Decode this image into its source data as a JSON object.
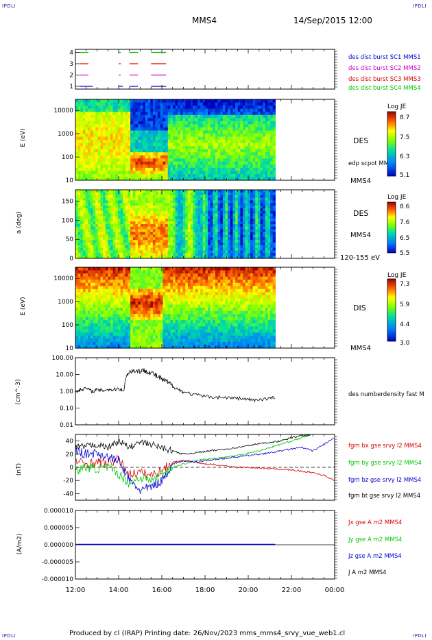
{
  "corner_labels": {
    "tl": "IPDLI",
    "tr": "IPDLI",
    "bl": "IPDLI",
    "br": "IPDLI"
  },
  "header": {
    "spacecraft": "MMS4",
    "datetime": "14/Sep/2015 12:00"
  },
  "footer": {
    "text": "Produced by cl (IRAP)   Printing date: 26/Nov/2023   mms_mms4_srvy_vue_web1.cl"
  },
  "colors": {
    "red": "#d80000",
    "green": "#00c800",
    "blue": "#0000d0",
    "magenta": "#c800c8",
    "black": "#000000"
  },
  "chart_data": [
    {
      "type": "scatter",
      "name": "burst availability",
      "ylim": [
        0.5,
        4.5
      ],
      "yticks": [
        "1",
        "2",
        "3",
        "4"
      ],
      "series": [
        {
          "name": "des dist burst SC1 MMS1",
          "level": 1,
          "color": "#0000d0",
          "segments": [
            [
              12.2,
              12.8
            ],
            [
              14.0,
              14.2
            ],
            [
              14.5,
              14.9
            ],
            [
              15.5,
              16.2
            ]
          ]
        },
        {
          "name": "des dist burst SC2 MMS2",
          "level": 2,
          "color": "#c800c8",
          "segments": [
            [
              12.2,
              12.6
            ],
            [
              14.0,
              14.1
            ],
            [
              14.5,
              14.9
            ],
            [
              15.5,
              16.2
            ]
          ]
        },
        {
          "name": "des dist burst SC3 MMS3",
          "level": 3,
          "color": "#d80000",
          "segments": [
            [
              12.2,
              12.6
            ],
            [
              14.0,
              14.1
            ],
            [
              14.5,
              14.9
            ],
            [
              15.5,
              16.2
            ]
          ]
        },
        {
          "name": "des dist burst SC4 MMS4",
          "level": 4,
          "color": "#00c800",
          "segments": [
            [
              12.2,
              12.6
            ],
            [
              14.0,
              14.1
            ],
            [
              14.5,
              14.9
            ],
            [
              15.5,
              16.2
            ]
          ]
        }
      ]
    },
    {
      "type": "heatmap",
      "ylabel": "E (eV)",
      "yscale": "log",
      "ylim": [
        10,
        30000
      ],
      "yticks": [
        "10",
        "100",
        "1000",
        "10000"
      ],
      "colorbar": {
        "title": "Log JE",
        "ticks": [
          "8.7",
          "7.5",
          "6.3",
          "5.1"
        ],
        "range": [
          5.1,
          8.7
        ]
      },
      "right_labels": [
        "DES",
        "edp scpot MMS4",
        "MMS4"
      ]
    },
    {
      "type": "heatmap",
      "ylabel": "a (deg)",
      "ylim": [
        0,
        180
      ],
      "yticks": [
        "0",
        "50",
        "100",
        "150"
      ],
      "colorbar": {
        "title": "Log JE",
        "ticks": [
          "8.6",
          "7.6",
          "6.5",
          "5.5"
        ],
        "range": [
          5.5,
          8.6
        ]
      },
      "right_labels": [
        "DES",
        "MMS4",
        "120-155 eV"
      ]
    },
    {
      "type": "heatmap",
      "ylabel": "E (eV)",
      "yscale": "log",
      "ylim": [
        10,
        30000
      ],
      "yticks": [
        "10",
        "100",
        "1000",
        "10000"
      ],
      "colorbar": {
        "title": "Log JE",
        "ticks": [
          "7.3",
          "5.9",
          "4.4",
          "3.0"
        ],
        "range": [
          3.0,
          7.3
        ]
      },
      "right_labels": [
        "DIS",
        "MMS4"
      ]
    },
    {
      "type": "line",
      "ylabel": "(cm^-3)",
      "yscale": "log",
      "ylim": [
        0.01,
        100
      ],
      "yticks": [
        "0.01",
        "0.10",
        "1.00",
        "10.00",
        "100.00"
      ],
      "series": [
        {
          "name": "des numberdensity fast M",
          "color": "#000000",
          "x": [
            12.0,
            12.25,
            12.5,
            12.75,
            13.0,
            13.25,
            13.5,
            13.75,
            14.0,
            14.25,
            14.5,
            14.75,
            15.0,
            15.25,
            15.5,
            15.75,
            16.0,
            16.25,
            16.5,
            16.75,
            17.0,
            17.5,
            18.0,
            18.5,
            19.0,
            19.5,
            20.0,
            20.25,
            20.5,
            21.0,
            21.25
          ],
          "y": [
            0.9,
            1.3,
            1.5,
            1.0,
            1.2,
            1.1,
            1.3,
            1.2,
            1.5,
            1.1,
            15.0,
            17.0,
            16.0,
            17.0,
            13.0,
            8.0,
            5.0,
            3.5,
            2.0,
            1.3,
            0.9,
            0.6,
            0.5,
            0.45,
            0.42,
            0.38,
            0.33,
            0.28,
            0.33,
            0.38,
            0.42
          ]
        }
      ]
    },
    {
      "type": "line",
      "ylabel": "(nT)",
      "ylim": [
        -50,
        50
      ],
      "yticks": [
        "-40",
        "-20",
        "0",
        "20",
        "40"
      ],
      "series": [
        {
          "name": "fgm bx gse srvy l2 MMS4",
          "color": "#d80000",
          "x": [
            12.0,
            12.5,
            13.0,
            13.5,
            14.0,
            14.5,
            15.0,
            15.5,
            16.0,
            16.5,
            17.0,
            17.5,
            18.0,
            18.5,
            19.0,
            19.5,
            20.0,
            20.5,
            21.0,
            21.5,
            22.0,
            22.5,
            23.0,
            23.5,
            24.0
          ],
          "y": [
            10,
            5,
            8,
            6,
            12,
            -10,
            -8,
            -12,
            -5,
            8,
            10,
            8,
            5,
            4,
            2,
            0,
            0,
            -1,
            -2,
            -3,
            -4,
            -6,
            -8,
            -12,
            -20
          ]
        },
        {
          "name": "fgm by gse srvy l2 MMS4",
          "color": "#00c800",
          "x": [
            12.0,
            12.5,
            13.0,
            13.5,
            14.0,
            14.5,
            15.0,
            15.5,
            16.0,
            16.5,
            17.0,
            17.5,
            18.0,
            18.5,
            19.0,
            19.5,
            20.0,
            20.5,
            21.0,
            21.5,
            22.0,
            22.5,
            22.9
          ],
          "y": [
            -5,
            0,
            -2,
            0,
            -10,
            -25,
            -15,
            -20,
            -10,
            0,
            5,
            10,
            12,
            14,
            16,
            18,
            22,
            25,
            30,
            35,
            40,
            45,
            50
          ]
        },
        {
          "name": "fgm bz gse srvy l2 MMS4",
          "color": "#0000d0",
          "x": [
            12.0,
            12.5,
            13.0,
            13.5,
            14.0,
            14.5,
            15.0,
            15.5,
            16.0,
            16.5,
            17.0,
            17.5,
            18.0,
            18.5,
            19.0,
            19.5,
            20.0,
            20.5,
            21.0,
            21.5,
            22.0,
            22.5,
            23.0,
            23.5,
            24.0
          ],
          "y": [
            25,
            20,
            22,
            15,
            10,
            -20,
            -35,
            -30,
            -20,
            5,
            10,
            8,
            10,
            12,
            14,
            16,
            18,
            20,
            22,
            25,
            28,
            30,
            25,
            35,
            45
          ]
        },
        {
          "name": "fgm bt gse srvy l2 MMS4",
          "color": "#000000",
          "x": [
            12.0,
            12.5,
            13.0,
            13.5,
            14.0,
            14.5,
            15.0,
            15.5,
            16.0,
            16.5,
            17.0,
            17.5,
            18.0,
            18.5,
            19.0,
            19.5,
            20.0,
            20.5,
            21.0,
            21.5,
            22.0,
            22.5,
            22.9
          ],
          "y": [
            30,
            32,
            35,
            30,
            40,
            30,
            38,
            35,
            30,
            25,
            20,
            22,
            24,
            26,
            28,
            30,
            33,
            36,
            38,
            40,
            45,
            48,
            50
          ]
        }
      ]
    },
    {
      "type": "line",
      "ylabel": "(A/m2)",
      "ylim": [
        -1e-05,
        1e-05
      ],
      "yticks": [
        "-0.000010",
        "-0.000005",
        "0.000000",
        "0.000005",
        "0.000010"
      ],
      "series": [
        {
          "name": "Jx gse A m2 MMS4",
          "color": "#d80000"
        },
        {
          "name": "Jy gse A m2 MMS4",
          "color": "#00c800"
        },
        {
          "name": "Jz gse A m2 MMS4",
          "color": "#0000d0",
          "x": [
            12.0,
            21.25
          ],
          "y": [
            1e-07,
            1e-07
          ]
        },
        {
          "name": "J A m2 MMS4",
          "color": "#000000"
        }
      ],
      "xticks": [
        "12:00",
        "14:00",
        "16:00",
        "18:00",
        "20:00",
        "22:00",
        "00:00"
      ],
      "xlim": [
        12,
        24
      ]
    }
  ]
}
